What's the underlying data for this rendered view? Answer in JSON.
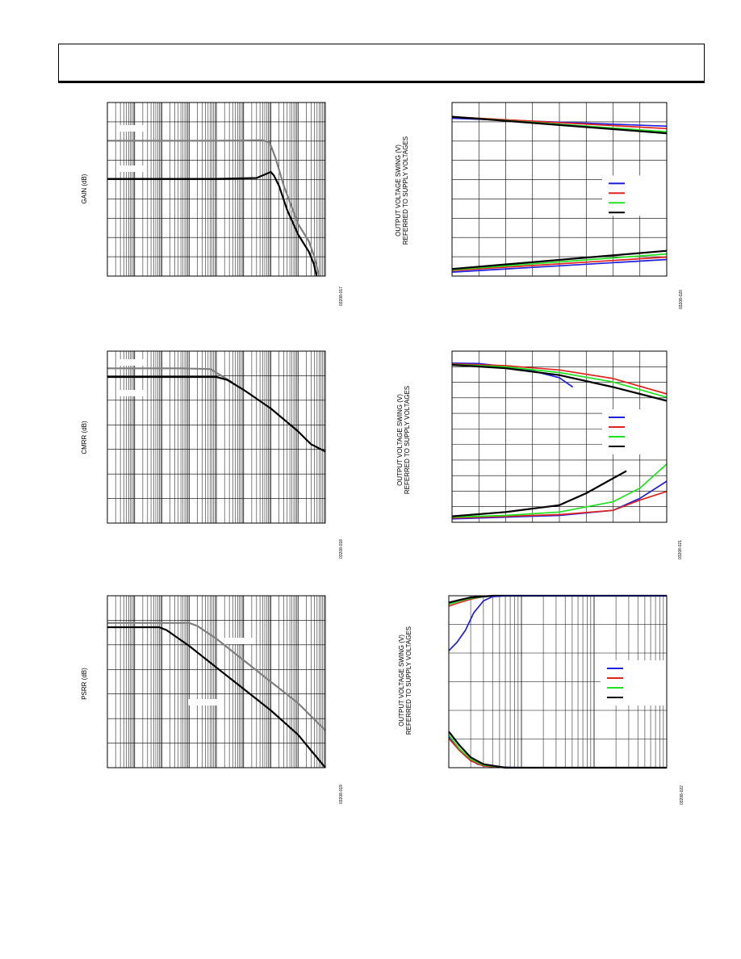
{
  "colors": {
    "black": "#000000",
    "gray": "#7f7f7f",
    "blue": "#1f1fdc",
    "red": "#e0231f",
    "green": "#1ee21e"
  },
  "chart_data": [
    {
      "id": "gain",
      "type": "line",
      "ylabel": "GAIN (dB)",
      "figure_id": "03208-017",
      "x_scale": "log",
      "xlim": [
        1,
        100000000
      ],
      "ylim": [
        0,
        100
      ],
      "grid": true,
      "series": [
        {
          "color": "gray",
          "points": [
            [
              1,
              78
            ],
            [
              10000,
              78
            ],
            [
              500000,
              78.3
            ],
            [
              900000,
              77
            ],
            [
              1500000,
              68
            ],
            [
              3000000,
              52
            ],
            [
              10000000,
              30
            ],
            [
              25000000,
              20
            ],
            [
              38000000,
              12
            ],
            [
              60000000,
              0
            ]
          ]
        },
        {
          "color": "black",
          "points": [
            [
              1,
              56
            ],
            [
              10000,
              56
            ],
            [
              300000,
              56.5
            ],
            [
              700000,
              59
            ],
            [
              1000000,
              60
            ],
            [
              1300000,
              58
            ],
            [
              2000000,
              52
            ],
            [
              4000000,
              38
            ],
            [
              10000000,
              24
            ],
            [
              25000000,
              14
            ],
            [
              38000000,
              7
            ],
            [
              48000000,
              0
            ]
          ]
        }
      ]
    },
    {
      "id": "ovs1",
      "type": "line",
      "ylabel": "OUTPUT VOLTAGE SWING (V)\nREFERRED TO SUPPLY VOLTAGES",
      "figure_id": "03208-020",
      "x_scale": "linear",
      "xlim": [
        0,
        8
      ],
      "ylim": [
        0,
        110
      ],
      "grid": true,
      "legend": {
        "position": "center-right",
        "colors": [
          "blue",
          "red",
          "green",
          "black"
        ]
      },
      "series": [
        {
          "color": "blue",
          "points": [
            [
              0,
              100
            ],
            [
              8,
              95
            ]
          ]
        },
        {
          "color": "red",
          "points": [
            [
              0,
              101
            ],
            [
              8,
              93.5
            ]
          ]
        },
        {
          "color": "green",
          "points": [
            [
              0,
              101
            ],
            [
              8,
              91.5
            ]
          ]
        },
        {
          "color": "black",
          "points": [
            [
              0,
              101
            ],
            [
              8,
              90.5
            ]
          ]
        },
        {
          "color": "blue",
          "points": [
            [
              0,
              2.5
            ],
            [
              8,
              10.5
            ]
          ]
        },
        {
          "color": "red",
          "points": [
            [
              0,
              3.5
            ],
            [
              8,
              12
            ]
          ]
        },
        {
          "color": "green",
          "points": [
            [
              0,
              4
            ],
            [
              8,
              14
            ]
          ]
        },
        {
          "color": "black",
          "points": [
            [
              0,
              4.5
            ],
            [
              8,
              16
            ]
          ]
        }
      ]
    },
    {
      "id": "cmrr",
      "type": "line",
      "ylabel": "CMRR (dB)",
      "figure_id": "03208-018",
      "x_scale": "log",
      "xlim": [
        1,
        100000000
      ],
      "ylim": [
        0,
        120
      ],
      "grid": true,
      "series": [
        {
          "color": "gray",
          "points": [
            [
              1,
              108
            ],
            [
              500,
              108
            ],
            [
              6000,
              107.5
            ],
            [
              15000,
              103
            ],
            [
              40000,
              98
            ]
          ]
        },
        {
          "color": "black",
          "points": [
            [
              1,
              102
            ],
            [
              10000,
              102
            ],
            [
              25000,
              100
            ],
            [
              100000,
              93
            ],
            [
              1000000,
              80
            ],
            [
              10000000,
              64
            ],
            [
              30000000,
              55
            ],
            [
              100000000,
              50
            ]
          ]
        }
      ]
    },
    {
      "id": "ovs2",
      "type": "line",
      "ylabel": "OUTPUT VOLTAGE SWING (V)\nREFERRED TO SUPPLY VOLTAGES",
      "figure_id": "03208-021",
      "x_scale": "linear",
      "xlim": [
        0,
        8
      ],
      "ylim": [
        0,
        100
      ],
      "grid": true,
      "legend": {
        "position": "center-right",
        "colors": [
          "blue",
          "red",
          "green",
          "black"
        ]
      },
      "series": [
        {
          "color": "blue",
          "points": [
            [
              0,
              93
            ],
            [
              1,
              92.8
            ],
            [
              2,
              91
            ],
            [
              3,
              88.5
            ],
            [
              4,
              84.5
            ],
            [
              4.5,
              79
            ]
          ]
        },
        {
          "color": "red",
          "points": [
            [
              0,
              92.6
            ],
            [
              2,
              91.5
            ],
            [
              4,
              89
            ],
            [
              6,
              84
            ],
            [
              8,
              75
            ]
          ]
        },
        {
          "color": "green",
          "points": [
            [
              0,
              92.2
            ],
            [
              2,
              90.8
            ],
            [
              4,
              87.5
            ],
            [
              6,
              82
            ],
            [
              8,
              73
            ]
          ]
        },
        {
          "color": "black",
          "points": [
            [
              0,
              92
            ],
            [
              2,
              90
            ],
            [
              4,
              86
            ],
            [
              6,
              79
            ],
            [
              8,
              71
            ]
          ]
        },
        {
          "color": "blue",
          "points": [
            [
              0,
              2
            ],
            [
              2,
              3
            ],
            [
              4,
              4
            ],
            [
              6,
              7
            ],
            [
              7,
              14
            ],
            [
              8,
              24
            ]
          ]
        },
        {
          "color": "red",
          "points": [
            [
              0,
              2.5
            ],
            [
              2,
              3.5
            ],
            [
              4,
              4.5
            ],
            [
              6,
              7
            ],
            [
              7,
              13
            ],
            [
              8,
              18
            ]
          ]
        },
        {
          "color": "green",
          "points": [
            [
              0,
              3
            ],
            [
              2,
              4
            ],
            [
              4,
              6
            ],
            [
              6,
              12
            ],
            [
              7,
              20
            ],
            [
              8,
              34
            ]
          ]
        },
        {
          "color": "black",
          "points": [
            [
              0,
              3.5
            ],
            [
              2,
              6
            ],
            [
              4,
              10
            ],
            [
              5,
              17
            ],
            [
              6.5,
              30
            ]
          ]
        }
      ]
    },
    {
      "id": "psrr",
      "type": "line",
      "ylabel": "PSRR (dB)",
      "figure_id": "03208-019",
      "x_scale": "log",
      "xlim": [
        1,
        100000000
      ],
      "ylim": [
        0,
        120
      ],
      "grid": true,
      "series": [
        {
          "color": "gray",
          "points": [
            [
              1,
              101
            ],
            [
              1000,
              101
            ],
            [
              2000,
              99
            ],
            [
              10000,
              90
            ],
            [
              100000,
              75
            ],
            [
              1000000,
              60
            ],
            [
              10000000,
              45
            ],
            [
              100000000,
              26
            ]
          ]
        },
        {
          "color": "black",
          "points": [
            [
              1,
              98
            ],
            [
              80,
              98
            ],
            [
              150,
              96
            ],
            [
              1000,
              85
            ],
            [
              10000,
              70
            ],
            [
              100000,
              55
            ],
            [
              1000000,
              40
            ],
            [
              10000000,
              23
            ],
            [
              100000000,
              0
            ]
          ]
        }
      ]
    },
    {
      "id": "ovs3",
      "type": "line",
      "ylabel": "OUTPUT VOLTAGE SWING (V)\nREFERRED TO SUPPLY VOLTAGES",
      "figure_id": "03208-022",
      "x_scale": "log",
      "xlim": [
        10,
        10000
      ],
      "ylim": [
        0,
        100
      ],
      "grid": true,
      "legend": {
        "position": "center-right",
        "colors": [
          "blue",
          "red",
          "green",
          "black"
        ]
      },
      "series": [
        {
          "color": "red",
          "points": [
            [
              10,
              94
            ],
            [
              14,
              96
            ],
            [
              20,
              98
            ],
            [
              30,
              99.5
            ],
            [
              50,
              100
            ],
            [
              10000,
              100
            ]
          ]
        },
        {
          "color": "green",
          "points": [
            [
              10,
              95
            ],
            [
              14,
              97
            ],
            [
              20,
              98.5
            ],
            [
              40,
              100
            ],
            [
              10000,
              100
            ]
          ]
        },
        {
          "color": "black",
          "points": [
            [
              10,
              96
            ],
            [
              14,
              97.5
            ],
            [
              20,
              99
            ],
            [
              40,
              100
            ],
            [
              10000,
              100
            ]
          ]
        },
        {
          "color": "blue",
          "points": [
            [
              10,
              68
            ],
            [
              13,
              73
            ],
            [
              17,
              80
            ],
            [
              22,
              90
            ],
            [
              30,
              97
            ],
            [
              40,
              99.5
            ],
            [
              60,
              100
            ],
            [
              10000,
              100
            ]
          ]
        },
        {
          "color": "blue",
          "points": [
            [
              10,
              18
            ],
            [
              13,
              12
            ],
            [
              18,
              6
            ],
            [
              25,
              2
            ],
            [
              40,
              0.5
            ],
            [
              100,
              0
            ],
            [
              10000,
              0
            ]
          ]
        },
        {
          "color": "red",
          "points": [
            [
              10,
              17
            ],
            [
              14,
              10
            ],
            [
              20,
              4
            ],
            [
              30,
              1
            ],
            [
              60,
              0
            ],
            [
              10000,
              0
            ]
          ]
        },
        {
          "color": "green",
          "points": [
            [
              10,
              19
            ],
            [
              14,
              11
            ],
            [
              20,
              5
            ],
            [
              30,
              1.5
            ],
            [
              60,
              0
            ],
            [
              10000,
              0
            ]
          ]
        },
        {
          "color": "black",
          "points": [
            [
              10,
              21
            ],
            [
              14,
              13
            ],
            [
              20,
              6
            ],
            [
              30,
              2
            ],
            [
              60,
              0
            ],
            [
              10000,
              0
            ]
          ]
        }
      ]
    }
  ]
}
